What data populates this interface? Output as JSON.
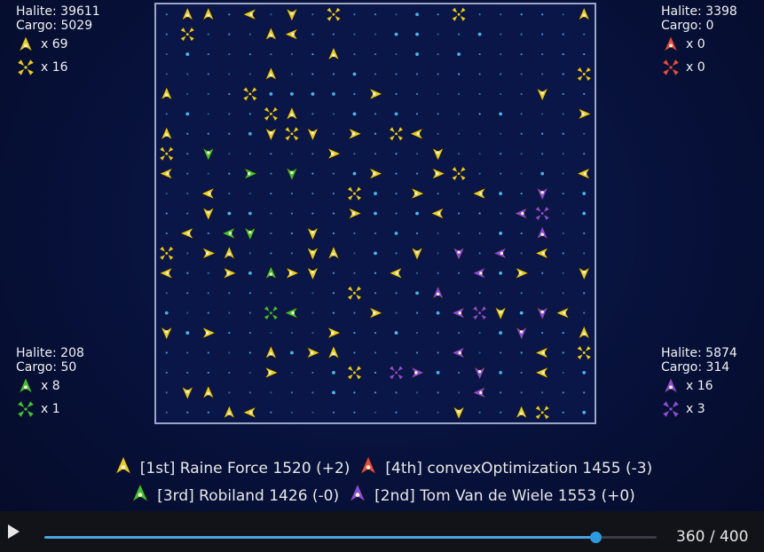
{
  "colors": {
    "yellow": "#e8cc2a",
    "red": "#e84a4a",
    "green": "#3fc23a",
    "purple": "#8a4ae0",
    "halite": "#4fc8ff"
  },
  "players": [
    {
      "id": "p1",
      "color": "#e8cc2a",
      "halite_label": "Halite: 39611",
      "cargo_label": "Cargo: 5029",
      "ships_label": "x 69",
      "dropoffs_label": "x 16"
    },
    {
      "id": "p2",
      "color": "#e84a4a",
      "halite_label": "Halite: 3398",
      "cargo_label": "Cargo: 0",
      "ships_label": "x 0",
      "dropoffs_label": "x 0"
    },
    {
      "id": "p3",
      "color": "#3fc23a",
      "halite_label": "Halite: 208",
      "cargo_label": "Cargo: 50",
      "ships_label": "x 8",
      "dropoffs_label": "x 1"
    },
    {
      "id": "p4",
      "color": "#8a4ae0",
      "halite_label": "Halite: 5874",
      "cargo_label": "Cargo: 314",
      "ships_label": "x 16",
      "dropoffs_label": "x 3"
    }
  ],
  "legend": [
    {
      "text": "[1st] Raine Force 1520 (+2)",
      "color": "#e8cc2a"
    },
    {
      "text": "[4th] convexOptimization 1455 (-3)",
      "color": "#e84a4a"
    },
    {
      "text": "[3rd] Robiland 1426 (-0)",
      "color": "#3fc23a"
    },
    {
      "text": "[2nd] Tom Van de Wiele 1553 (+0)",
      "color": "#8a4ae0"
    }
  ],
  "board": {
    "cols": 21,
    "rows": 21,
    "units": [
      {
        "c": 1,
        "r": 0,
        "o": "p1",
        "t": "ship",
        "d": "u"
      },
      {
        "c": 2,
        "r": 0,
        "o": "p1",
        "t": "ship",
        "d": "u"
      },
      {
        "c": 4,
        "r": 0,
        "o": "p1",
        "t": "ship",
        "d": "l"
      },
      {
        "c": 6,
        "r": 0,
        "o": "p1",
        "t": "ship",
        "d": "d"
      },
      {
        "c": 8,
        "r": 0,
        "o": "p1",
        "t": "drop"
      },
      {
        "c": 14,
        "r": 0,
        "o": "p1",
        "t": "drop"
      },
      {
        "c": 20,
        "r": 0,
        "o": "p1",
        "t": "ship",
        "d": "u"
      },
      {
        "c": 1,
        "r": 1,
        "o": "p1",
        "t": "drop"
      },
      {
        "c": 5,
        "r": 1,
        "o": "p1",
        "t": "ship",
        "d": "u"
      },
      {
        "c": 6,
        "r": 1,
        "o": "p1",
        "t": "ship",
        "d": "l"
      },
      {
        "c": 8,
        "r": 2,
        "o": "p1",
        "t": "ship",
        "d": "u"
      },
      {
        "c": 5,
        "r": 3,
        "o": "p1",
        "t": "ship",
        "d": "u"
      },
      {
        "c": 20,
        "r": 3,
        "o": "p1",
        "t": "drop"
      },
      {
        "c": 0,
        "r": 4,
        "o": "p1",
        "t": "ship",
        "d": "u"
      },
      {
        "c": 4,
        "r": 4,
        "o": "p1",
        "t": "drop"
      },
      {
        "c": 10,
        "r": 4,
        "o": "p1",
        "t": "ship",
        "d": "r"
      },
      {
        "c": 18,
        "r": 4,
        "o": "p1",
        "t": "ship",
        "d": "d"
      },
      {
        "c": 5,
        "r": 5,
        "o": "p1",
        "t": "drop"
      },
      {
        "c": 6,
        "r": 5,
        "o": "p1",
        "t": "ship",
        "d": "u"
      },
      {
        "c": 20,
        "r": 5,
        "o": "p1",
        "t": "ship",
        "d": "r"
      },
      {
        "c": 0,
        "r": 6,
        "o": "p1",
        "t": "ship",
        "d": "u"
      },
      {
        "c": 5,
        "r": 6,
        "o": "p1",
        "t": "ship",
        "d": "d"
      },
      {
        "c": 6,
        "r": 6,
        "o": "p1",
        "t": "drop"
      },
      {
        "c": 7,
        "r": 6,
        "o": "p1",
        "t": "ship",
        "d": "d"
      },
      {
        "c": 9,
        "r": 6,
        "o": "p1",
        "t": "ship",
        "d": "r"
      },
      {
        "c": 11,
        "r": 6,
        "o": "p1",
        "t": "drop"
      },
      {
        "c": 12,
        "r": 6,
        "o": "p1",
        "t": "ship",
        "d": "l"
      },
      {
        "c": 0,
        "r": 7,
        "o": "p1",
        "t": "drop"
      },
      {
        "c": 2,
        "r": 7,
        "o": "p3",
        "t": "ship",
        "d": "d"
      },
      {
        "c": 8,
        "r": 7,
        "o": "p1",
        "t": "ship",
        "d": "r"
      },
      {
        "c": 13,
        "r": 7,
        "o": "p1",
        "t": "ship",
        "d": "d"
      },
      {
        "c": 0,
        "r": 8,
        "o": "p1",
        "t": "ship",
        "d": "l"
      },
      {
        "c": 4,
        "r": 8,
        "o": "p3",
        "t": "ship",
        "d": "r"
      },
      {
        "c": 6,
        "r": 8,
        "o": "p3",
        "t": "ship",
        "d": "d"
      },
      {
        "c": 10,
        "r": 8,
        "o": "p1",
        "t": "ship",
        "d": "r"
      },
      {
        "c": 13,
        "r": 8,
        "o": "p1",
        "t": "ship",
        "d": "r"
      },
      {
        "c": 14,
        "r": 8,
        "o": "p1",
        "t": "drop"
      },
      {
        "c": 20,
        "r": 8,
        "o": "p1",
        "t": "ship",
        "d": "l"
      },
      {
        "c": 2,
        "r": 9,
        "o": "p1",
        "t": "ship",
        "d": "l"
      },
      {
        "c": 9,
        "r": 9,
        "o": "p1",
        "t": "drop"
      },
      {
        "c": 12,
        "r": 9,
        "o": "p1",
        "t": "ship",
        "d": "r"
      },
      {
        "c": 15,
        "r": 9,
        "o": "p1",
        "t": "ship",
        "d": "l"
      },
      {
        "c": 18,
        "r": 9,
        "o": "p4",
        "t": "ship",
        "d": "d"
      },
      {
        "c": 2,
        "r": 10,
        "o": "p1",
        "t": "ship",
        "d": "d"
      },
      {
        "c": 9,
        "r": 10,
        "o": "p1",
        "t": "ship",
        "d": "r"
      },
      {
        "c": 13,
        "r": 10,
        "o": "p1",
        "t": "ship",
        "d": "l"
      },
      {
        "c": 17,
        "r": 10,
        "o": "p4",
        "t": "ship",
        "d": "l"
      },
      {
        "c": 18,
        "r": 10,
        "o": "p4",
        "t": "drop"
      },
      {
        "c": 1,
        "r": 11,
        "o": "p1",
        "t": "ship",
        "d": "l"
      },
      {
        "c": 3,
        "r": 11,
        "o": "p3",
        "t": "ship",
        "d": "l"
      },
      {
        "c": 4,
        "r": 11,
        "o": "p3",
        "t": "ship",
        "d": "d"
      },
      {
        "c": 7,
        "r": 11,
        "o": "p1",
        "t": "ship",
        "d": "d"
      },
      {
        "c": 18,
        "r": 11,
        "o": "p4",
        "t": "ship",
        "d": "u"
      },
      {
        "c": 0,
        "r": 12,
        "o": "p1",
        "t": "drop"
      },
      {
        "c": 2,
        "r": 12,
        "o": "p1",
        "t": "ship",
        "d": "r"
      },
      {
        "c": 3,
        "r": 12,
        "o": "p1",
        "t": "ship",
        "d": "u"
      },
      {
        "c": 7,
        "r": 12,
        "o": "p1",
        "t": "ship",
        "d": "d"
      },
      {
        "c": 8,
        "r": 12,
        "o": "p1",
        "t": "ship",
        "d": "u"
      },
      {
        "c": 12,
        "r": 12,
        "o": "p1",
        "t": "ship",
        "d": "d"
      },
      {
        "c": 14,
        "r": 12,
        "o": "p4",
        "t": "ship",
        "d": "d"
      },
      {
        "c": 16,
        "r": 12,
        "o": "p4",
        "t": "ship",
        "d": "l"
      },
      {
        "c": 18,
        "r": 12,
        "o": "p1",
        "t": "ship",
        "d": "l"
      },
      {
        "c": 0,
        "r": 13,
        "o": "p1",
        "t": "ship",
        "d": "l"
      },
      {
        "c": 3,
        "r": 13,
        "o": "p1",
        "t": "ship",
        "d": "r"
      },
      {
        "c": 5,
        "r": 13,
        "o": "p3",
        "t": "ship",
        "d": "u"
      },
      {
        "c": 6,
        "r": 13,
        "o": "p1",
        "t": "ship",
        "d": "r"
      },
      {
        "c": 7,
        "r": 13,
        "o": "p1",
        "t": "ship",
        "d": "d"
      },
      {
        "c": 11,
        "r": 13,
        "o": "p1",
        "t": "ship",
        "d": "l"
      },
      {
        "c": 15,
        "r": 13,
        "o": "p4",
        "t": "ship",
        "d": "l"
      },
      {
        "c": 17,
        "r": 13,
        "o": "p1",
        "t": "ship",
        "d": "r"
      },
      {
        "c": 20,
        "r": 13,
        "o": "p1",
        "t": "ship",
        "d": "d"
      },
      {
        "c": 9,
        "r": 14,
        "o": "p1",
        "t": "drop"
      },
      {
        "c": 13,
        "r": 14,
        "o": "p4",
        "t": "ship",
        "d": "u"
      },
      {
        "c": 5,
        "r": 15,
        "o": "p3",
        "t": "drop"
      },
      {
        "c": 6,
        "r": 15,
        "o": "p3",
        "t": "ship",
        "d": "l"
      },
      {
        "c": 10,
        "r": 15,
        "o": "p1",
        "t": "ship",
        "d": "r"
      },
      {
        "c": 14,
        "r": 15,
        "o": "p4",
        "t": "ship",
        "d": "l"
      },
      {
        "c": 15,
        "r": 15,
        "o": "p4",
        "t": "drop"
      },
      {
        "c": 16,
        "r": 15,
        "o": "p1",
        "t": "ship",
        "d": "d"
      },
      {
        "c": 18,
        "r": 15,
        "o": "p4",
        "t": "ship",
        "d": "d"
      },
      {
        "c": 19,
        "r": 15,
        "o": "p1",
        "t": "ship",
        "d": "l"
      },
      {
        "c": 0,
        "r": 16,
        "o": "p1",
        "t": "ship",
        "d": "d"
      },
      {
        "c": 2,
        "r": 16,
        "o": "p1",
        "t": "ship",
        "d": "r"
      },
      {
        "c": 8,
        "r": 16,
        "o": "p1",
        "t": "ship",
        "d": "r"
      },
      {
        "c": 17,
        "r": 16,
        "o": "p4",
        "t": "ship",
        "d": "d"
      },
      {
        "c": 20,
        "r": 16,
        "o": "p1",
        "t": "ship",
        "d": "u"
      },
      {
        "c": 5,
        "r": 17,
        "o": "p1",
        "t": "ship",
        "d": "u"
      },
      {
        "c": 7,
        "r": 17,
        "o": "p1",
        "t": "ship",
        "d": "r"
      },
      {
        "c": 8,
        "r": 17,
        "o": "p1",
        "t": "ship",
        "d": "u"
      },
      {
        "c": 14,
        "r": 17,
        "o": "p4",
        "t": "ship",
        "d": "l"
      },
      {
        "c": 18,
        "r": 17,
        "o": "p1",
        "t": "ship",
        "d": "l"
      },
      {
        "c": 20,
        "r": 17,
        "o": "p1",
        "t": "drop"
      },
      {
        "c": 5,
        "r": 18,
        "o": "p1",
        "t": "ship",
        "d": "r"
      },
      {
        "c": 9,
        "r": 18,
        "o": "p1",
        "t": "drop"
      },
      {
        "c": 11,
        "r": 18,
        "o": "p4",
        "t": "drop"
      },
      {
        "c": 12,
        "r": 18,
        "o": "p4",
        "t": "ship",
        "d": "r"
      },
      {
        "c": 15,
        "r": 18,
        "o": "p4",
        "t": "ship",
        "d": "d"
      },
      {
        "c": 18,
        "r": 18,
        "o": "p1",
        "t": "ship",
        "d": "l"
      },
      {
        "c": 1,
        "r": 19,
        "o": "p1",
        "t": "ship",
        "d": "d"
      },
      {
        "c": 2,
        "r": 19,
        "o": "p1",
        "t": "ship",
        "d": "u"
      },
      {
        "c": 15,
        "r": 19,
        "o": "p4",
        "t": "ship",
        "d": "l"
      },
      {
        "c": 3,
        "r": 20,
        "o": "p1",
        "t": "ship",
        "d": "u"
      },
      {
        "c": 4,
        "r": 20,
        "o": "p1",
        "t": "ship",
        "d": "l"
      },
      {
        "c": 14,
        "r": 20,
        "o": "p1",
        "t": "ship",
        "d": "d"
      },
      {
        "c": 17,
        "r": 20,
        "o": "p1",
        "t": "ship",
        "d": "u"
      },
      {
        "c": 18,
        "r": 20,
        "o": "p1",
        "t": "drop"
      }
    ]
  },
  "playback": {
    "frame_label": "360 / 400",
    "progress": 0.9
  }
}
